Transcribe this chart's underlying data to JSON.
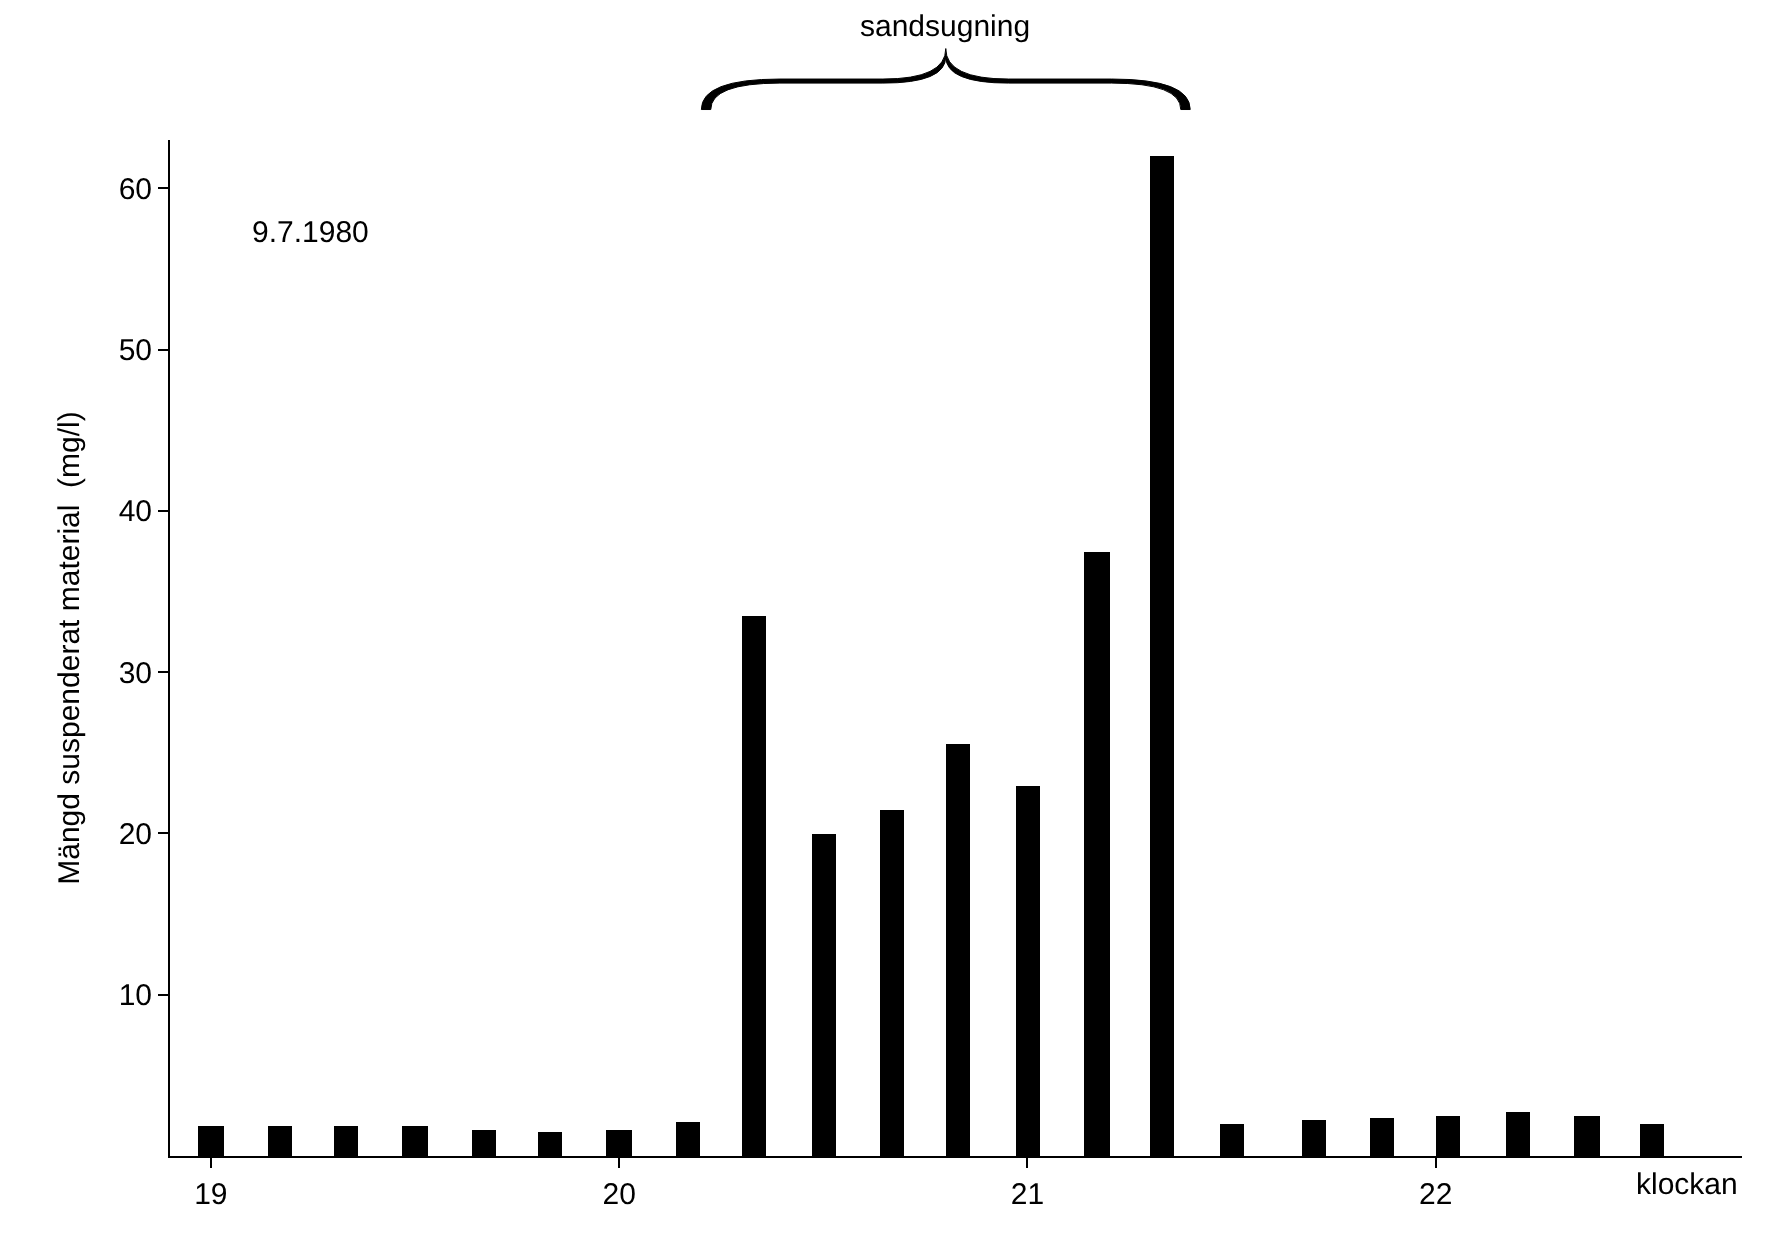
{
  "chart_data": {
    "type": "bar",
    "xlabel": "klockan",
    "ylabel": "Mängd suspenderat material  (mg/l)",
    "x": [
      19,
      19.17,
      19.33,
      19.5,
      19.67,
      19.83,
      20,
      20.17,
      20.33,
      20.5,
      20.67,
      20.83,
      21,
      21.17,
      21.33,
      21.5,
      21.7,
      21.87,
      22.03,
      22.2,
      22.37,
      22.53
    ],
    "values": [
      1.8,
      1.8,
      1.9,
      1.9,
      1.6,
      1.5,
      1.6,
      2.1,
      33.5,
      20,
      21.5,
      25.5,
      23,
      37.5,
      62,
      2,
      2.2,
      2.4,
      2.5,
      2.7,
      2.5,
      2
    ],
    "color": "#000000",
    "xlim": [
      18.9,
      22.75
    ],
    "xticks": [
      19,
      20,
      21,
      22
    ],
    "ylim": [
      0,
      63
    ],
    "yticks": [
      10,
      20,
      30,
      40,
      50,
      60
    ],
    "annotations": [
      "9.7.1980",
      "sandsugning"
    ]
  }
}
